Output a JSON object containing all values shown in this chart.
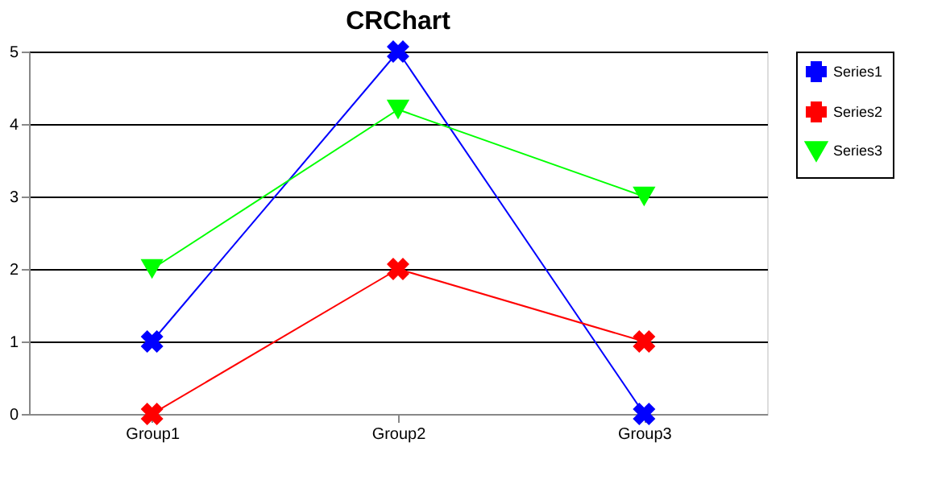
{
  "chart_data": {
    "type": "line",
    "title": "CRChart",
    "categories": [
      "Group1",
      "Group2",
      "Group3"
    ],
    "series": [
      {
        "name": "Series1",
        "color": "#0000ff",
        "values": [
          1,
          5,
          0
        ],
        "marker": "cross"
      },
      {
        "name": "Series2",
        "color": "#ff0000",
        "values": [
          0,
          2,
          1
        ],
        "marker": "cross"
      },
      {
        "name": "Series3",
        "color": "#00ff00",
        "values": [
          2,
          4.2,
          3
        ],
        "marker": "triangle"
      }
    ],
    "ylim": [
      0,
      5
    ],
    "yticks": [
      0,
      1,
      2,
      3,
      4,
      5
    ],
    "grid": "y",
    "legend": "right"
  }
}
